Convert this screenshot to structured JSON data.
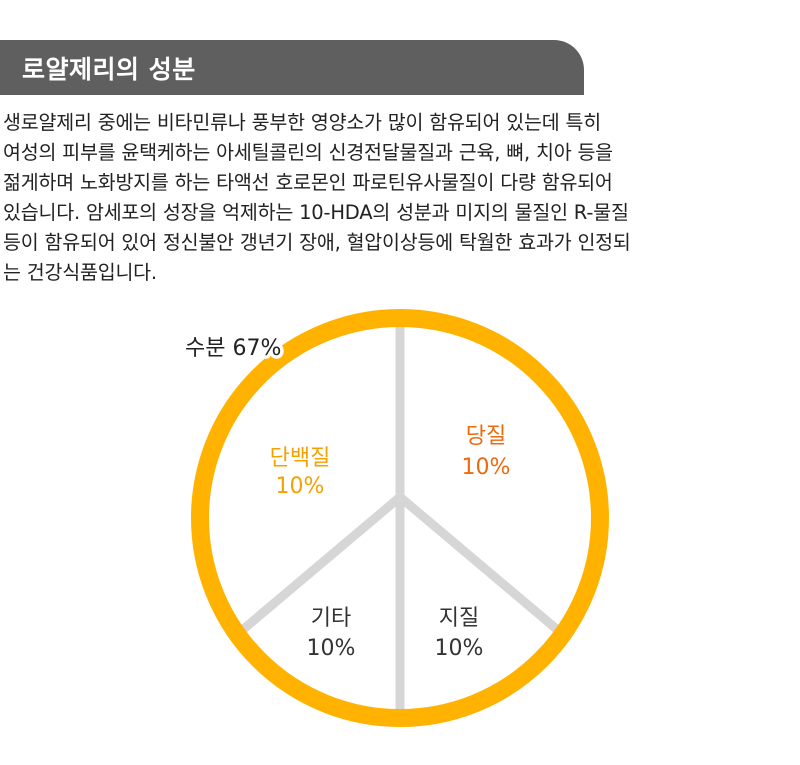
{
  "header": {
    "title": "로얄제리의 성분"
  },
  "description": "생로얄제리 중에는 비타민류나 풍부한 영양소가 많이 함유되어 있는데  특히\n여성의 피부를 윤택케하는 아세틸콜린의 신경전달물질과 근육, 뼈, 치아 등을\n젊게하며 노화방지를 하는 타액선 호로몬인 파로틴유사물질이 다량 함유되어\n있습니다. 암세포의 성장을 억제하는 10-HDA의 성분과 미지의 물질인 R-물질\n등이 함유되어 있어 정신불안 갱년기 장애, 혈압이상등에 탁월한 효과가 인정되\n는 건강식품입니다.",
  "colors": {
    "ring": "#FFB300",
    "divider": "#d6d6d6",
    "protein": "#F5A100",
    "sugar": "#EE6A0C",
    "neutral": "#333333",
    "header_bg": "#5f5f5f"
  },
  "chart_data": {
    "type": "pie",
    "outer_label": "수분 67%",
    "outer_value": 67,
    "segments": [
      {
        "label": "단백질",
        "value": 10,
        "value_text": "10%",
        "color": "#F5A100"
      },
      {
        "label": "당질",
        "value": 10,
        "value_text": "10%",
        "color": "#EE6A0C"
      },
      {
        "label": "기타",
        "value": 10,
        "value_text": "10%",
        "color": "#333333"
      },
      {
        "label": "지질",
        "value": 10,
        "value_text": "10%",
        "color": "#333333"
      }
    ]
  }
}
